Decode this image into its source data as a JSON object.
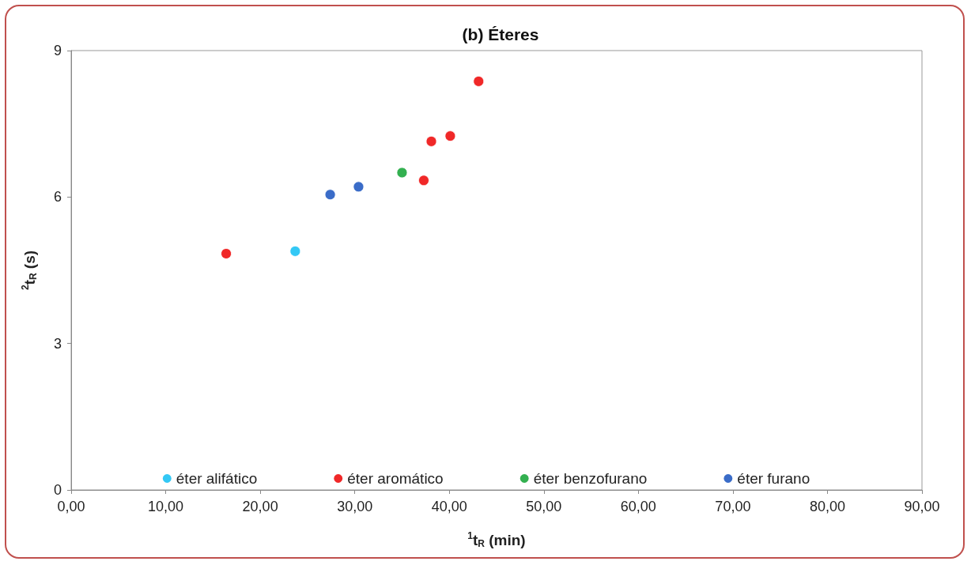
{
  "chart_data": {
    "type": "scatter",
    "title": "(b) Éteres",
    "xlabel": "$^{1}$t$_{R}$ (min)",
    "ylabel": "$^{2}$t$_{R}$ (s)",
    "xlim": [
      0,
      90
    ],
    "xticks": [
      {
        "value": 0,
        "label": "0,00"
      },
      {
        "value": 10,
        "label": "10,00"
      },
      {
        "value": 20,
        "label": "20,00"
      },
      {
        "value": 30,
        "label": "30,00"
      },
      {
        "value": 40,
        "label": "40,00"
      },
      {
        "value": 50,
        "label": "50,00"
      },
      {
        "value": 60,
        "label": "60,00"
      },
      {
        "value": 70,
        "label": "70,00"
      },
      {
        "value": 80,
        "label": "80,00"
      },
      {
        "value": 90,
        "label": "90,00"
      }
    ],
    "ylim": [
      0,
      9
    ],
    "yticks": [
      0,
      3,
      6,
      9
    ],
    "grid": false,
    "legend": "bottom",
    "marker": "circle",
    "series": [
      {
        "name": "éter alifático",
        "color": "#33c8f5",
        "x": [
          23.7
        ],
        "values": [
          4.89
        ]
      },
      {
        "name": "éter aromático",
        "color": "#f02828",
        "x": [
          16.4,
          37.3,
          38.1,
          40.1,
          43.1
        ],
        "values": [
          4.84,
          6.34,
          7.14,
          7.25,
          8.37
        ]
      },
      {
        "name": "éter benzofurano",
        "color": "#33b050",
        "x": [
          35.0
        ],
        "values": [
          6.5
        ]
      },
      {
        "name": "éter furano",
        "color": "#3a6cc8",
        "x": [
          27.4,
          30.4
        ],
        "values": [
          6.05,
          6.21
        ]
      }
    ]
  }
}
